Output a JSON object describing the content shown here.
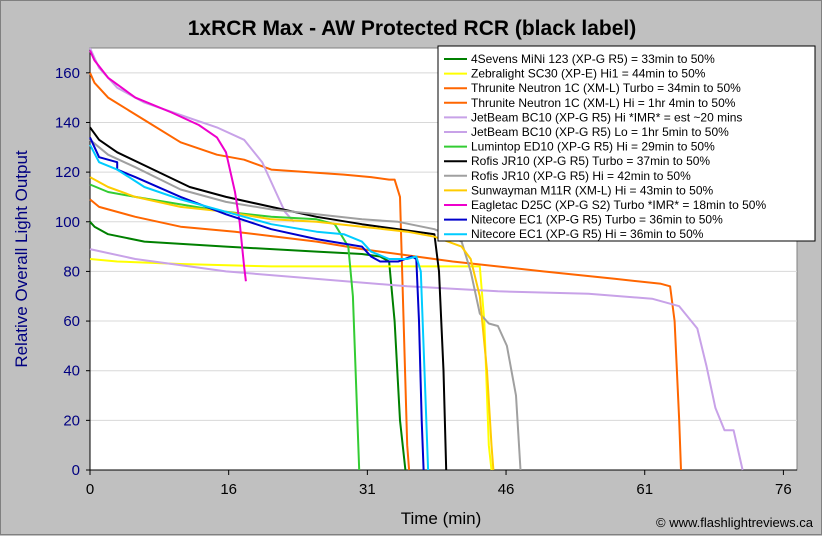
{
  "chart_data": {
    "type": "line",
    "title": "1xRCR Max - AW Protected RCR (black label)",
    "xlabel": "Time (min)",
    "ylabel": "Relative Overall Light Output",
    "credit": "© www.flashlightreviews.ca",
    "xlim": [
      0,
      78
    ],
    "ylim": [
      0,
      170
    ],
    "xticks": [
      0,
      16,
      31,
      46,
      61,
      76
    ],
    "yticks": [
      0,
      20,
      40,
      60,
      80,
      100,
      120,
      140,
      160
    ],
    "xtick_positions": [
      0,
      15.3,
      30.6,
      45.9,
      61.2,
      76.5
    ],
    "legend_position": "top-right",
    "series": [
      {
        "name": "4Sevens MiNi 123 (XP-G R5) = 33min to 50%",
        "color": "#008000",
        "points": [
          [
            0,
            100
          ],
          [
            0.5,
            98
          ],
          [
            2,
            95
          ],
          [
            6,
            92
          ],
          [
            15,
            90
          ],
          [
            25,
            88
          ],
          [
            30,
            87
          ],
          [
            32,
            86
          ],
          [
            33,
            84
          ],
          [
            33.6,
            60
          ],
          [
            34.2,
            20
          ],
          [
            34.8,
            0
          ]
        ]
      },
      {
        "name": "Zebralight SC30 (XP-E) Hi1 = 44min to 50%",
        "color": "#ffff00",
        "points": [
          [
            0,
            85
          ],
          [
            3,
            84
          ],
          [
            10,
            83
          ],
          [
            20,
            82
          ],
          [
            30,
            82
          ],
          [
            40,
            82
          ],
          [
            43,
            82
          ],
          [
            43.5,
            60
          ],
          [
            44,
            10
          ],
          [
            44.3,
            0
          ]
        ]
      },
      {
        "name": "Thrunite Neutron 1C (XM-L) Turbo = 34min to 50%",
        "color": "#ff6600",
        "points": [
          [
            0,
            160
          ],
          [
            0.5,
            156
          ],
          [
            2,
            150
          ],
          [
            6,
            141
          ],
          [
            10,
            132
          ],
          [
            14,
            127
          ],
          [
            17,
            125
          ],
          [
            20,
            121
          ],
          [
            24,
            120
          ],
          [
            28,
            119
          ],
          [
            31,
            118
          ],
          [
            33,
            117
          ],
          [
            33.6,
            117
          ],
          [
            34.2,
            110
          ],
          [
            34.6,
            60
          ],
          [
            35,
            10
          ],
          [
            35.2,
            0
          ]
        ]
      },
      {
        "name": "Thrunite Neutron 1C (XM-L) Hi = 1hr 4min to 50%",
        "color": "#ff6600",
        "points": [
          [
            0,
            109
          ],
          [
            1,
            106
          ],
          [
            5,
            102
          ],
          [
            10,
            98
          ],
          [
            16,
            96
          ],
          [
            25,
            92
          ],
          [
            30,
            89
          ],
          [
            40,
            84
          ],
          [
            50,
            80
          ],
          [
            58,
            77
          ],
          [
            63,
            75
          ],
          [
            64,
            74
          ],
          [
            64.5,
            60
          ],
          [
            65,
            20
          ],
          [
            65.2,
            0
          ]
        ]
      },
      {
        "name": "JetBeam BC10 (XP-G R5) Hi *IMR* = est ~20 mins",
        "color": "#c8a2e8",
        "points": [
          [
            0,
            170
          ],
          [
            1,
            162
          ],
          [
            3,
            154
          ],
          [
            6,
            148
          ],
          [
            10,
            143
          ],
          [
            14,
            138
          ],
          [
            17,
            133
          ],
          [
            19,
            124
          ],
          [
            20.5,
            112
          ],
          [
            21.5,
            104
          ],
          [
            22.5,
            100
          ]
        ]
      },
      {
        "name": "JetBeam BC10 (XP-G R5) Lo = 1hr 5min to 50%",
        "color": "#c8a2e8",
        "points": [
          [
            0,
            89
          ],
          [
            5,
            85
          ],
          [
            15,
            80
          ],
          [
            25,
            77
          ],
          [
            35,
            74
          ],
          [
            45,
            72
          ],
          [
            55,
            71
          ],
          [
            62,
            69
          ],
          [
            65,
            66
          ],
          [
            67,
            57
          ],
          [
            68,
            42
          ],
          [
            69,
            25
          ],
          [
            70,
            16
          ],
          [
            71,
            16
          ],
          [
            71.5,
            8
          ],
          [
            72,
            0
          ]
        ]
      },
      {
        "name": "Lumintop ED10 (XP-G R5) Hi = 29min to 50%",
        "color": "#33cc33",
        "points": [
          [
            0,
            115
          ],
          [
            2,
            112
          ],
          [
            5,
            110
          ],
          [
            10,
            107
          ],
          [
            15,
            104
          ],
          [
            20,
            102
          ],
          [
            25,
            101
          ],
          [
            27,
            99
          ],
          [
            28.5,
            90
          ],
          [
            29,
            70
          ],
          [
            29.4,
            30
          ],
          [
            29.7,
            0
          ]
        ]
      },
      {
        "name": "Rofis JR10 (XP-G R5) Turbo = 37min to 50%",
        "color": "#000000",
        "points": [
          [
            0,
            138
          ],
          [
            1,
            133
          ],
          [
            3,
            128
          ],
          [
            7,
            121
          ],
          [
            11,
            114
          ],
          [
            15,
            110
          ],
          [
            20,
            106
          ],
          [
            25,
            102
          ],
          [
            30,
            99
          ],
          [
            34,
            97
          ],
          [
            38,
            95
          ],
          [
            38.5,
            80
          ],
          [
            39,
            40
          ],
          [
            39.3,
            0
          ]
        ]
      },
      {
        "name": "Rofis JR10 (XP-G R5) Hi = 42min to 50%",
        "color": "#a0a0a0",
        "points": [
          [
            0,
            133
          ],
          [
            2,
            127
          ],
          [
            5,
            122
          ],
          [
            10,
            113
          ],
          [
            15,
            108
          ],
          [
            20,
            105
          ],
          [
            25,
            103
          ],
          [
            30,
            101
          ],
          [
            34,
            100
          ],
          [
            38,
            97
          ],
          [
            41,
            92
          ],
          [
            42,
            80
          ],
          [
            43,
            63
          ],
          [
            44,
            59
          ],
          [
            45,
            58
          ],
          [
            46,
            50
          ],
          [
            47,
            30
          ],
          [
            47.5,
            0
          ]
        ]
      },
      {
        "name": "Sunwayman M11R (XM-L) Hi = 43min to 50%",
        "color": "#ffcc00",
        "points": [
          [
            0,
            118
          ],
          [
            2,
            114
          ],
          [
            5,
            110
          ],
          [
            10,
            106
          ],
          [
            15,
            104
          ],
          [
            20,
            101
          ],
          [
            25,
            100
          ],
          [
            30,
            98
          ],
          [
            35,
            96
          ],
          [
            38,
            94
          ],
          [
            41,
            90
          ],
          [
            42,
            85
          ],
          [
            43,
            70
          ],
          [
            43.8,
            40
          ],
          [
            44.3,
            10
          ],
          [
            44.5,
            0
          ]
        ]
      },
      {
        "name": "Eagletac D25C (XP-G S2) Turbo *IMR* = 18min to 50%",
        "color": "#ee00cc",
        "points": [
          [
            0,
            169
          ],
          [
            0.5,
            165
          ],
          [
            2,
            158
          ],
          [
            5,
            150
          ],
          [
            9,
            144
          ],
          [
            12,
            139
          ],
          [
            14,
            134
          ],
          [
            15,
            128
          ],
          [
            16,
            112
          ],
          [
            16.5,
            100
          ],
          [
            17,
            82
          ],
          [
            17.2,
            76
          ]
        ]
      },
      {
        "name": "Nitecore EC1 (XP-G R5) Turbo = 36min to 50%",
        "color": "#0000cc",
        "points": [
          [
            0,
            134
          ],
          [
            1,
            126
          ],
          [
            3,
            124
          ],
          [
            3,
            121
          ],
          [
            5,
            118
          ],
          [
            10,
            110
          ],
          [
            15,
            103
          ],
          [
            20,
            97
          ],
          [
            25,
            93
          ],
          [
            30,
            90
          ],
          [
            31,
            86
          ],
          [
            32,
            84
          ],
          [
            34,
            84
          ],
          [
            35.5,
            86
          ],
          [
            36,
            85
          ],
          [
            36.3,
            60
          ],
          [
            36.6,
            20
          ],
          [
            36.8,
            0
          ]
        ]
      },
      {
        "name": "Nitecore EC1 (XP-G R5) Hi = 36min to 50%",
        "color": "#00ccff",
        "points": [
          [
            0,
            131
          ],
          [
            1,
            124
          ],
          [
            3,
            121
          ],
          [
            6,
            114
          ],
          [
            10,
            109
          ],
          [
            15,
            104
          ],
          [
            20,
            99
          ],
          [
            25,
            96
          ],
          [
            28,
            95
          ],
          [
            30,
            92
          ],
          [
            31,
            88
          ],
          [
            33,
            85
          ],
          [
            35,
            85
          ],
          [
            36,
            86
          ],
          [
            36.5,
            80
          ],
          [
            37,
            30
          ],
          [
            37.3,
            0
          ]
        ]
      }
    ]
  }
}
